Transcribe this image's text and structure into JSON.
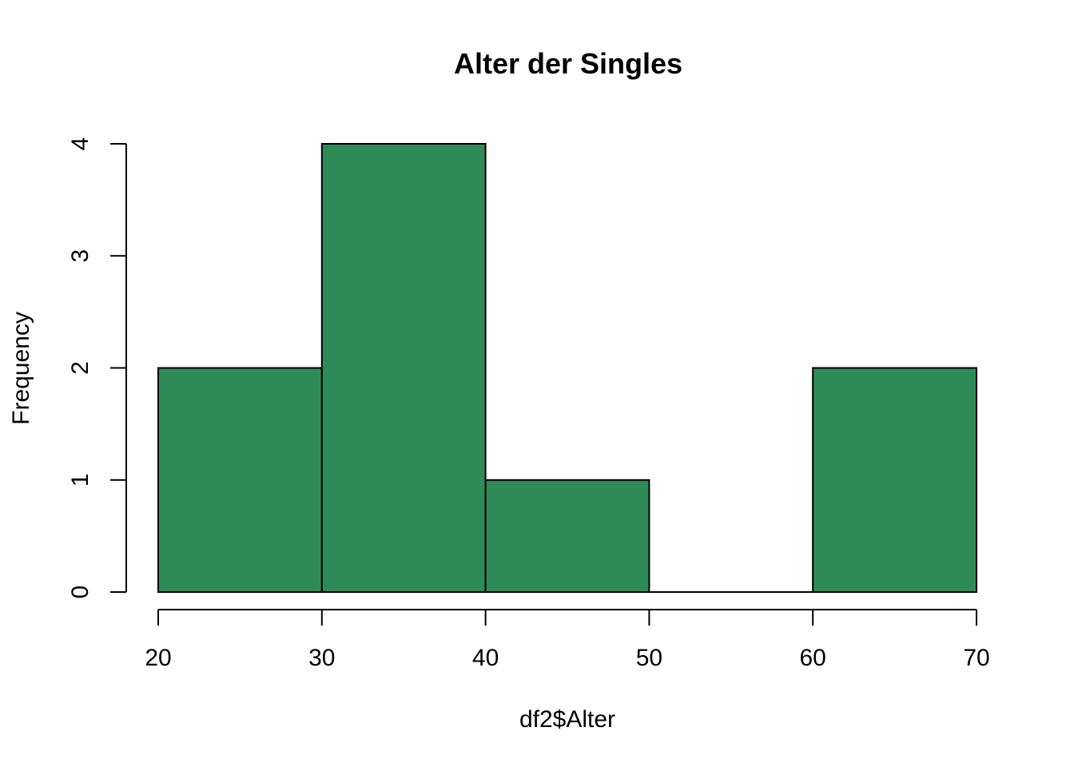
{
  "chart_data": {
    "type": "bar",
    "title": "Alter der Singles",
    "xlabel": "df2$Alter",
    "ylabel": "Frequency",
    "bins": [
      {
        "from": 20,
        "to": 30,
        "count": 2
      },
      {
        "from": 30,
        "to": 40,
        "count": 4
      },
      {
        "from": 40,
        "to": 50,
        "count": 1
      },
      {
        "from": 50,
        "to": 60,
        "count": 0
      },
      {
        "from": 60,
        "to": 70,
        "count": 2
      }
    ],
    "x_ticks": [
      20,
      30,
      40,
      50,
      60,
      70
    ],
    "y_ticks": [
      0,
      1,
      2,
      3,
      4
    ],
    "xlim": [
      20,
      70
    ],
    "ylim": [
      0,
      4
    ],
    "bar_color": "#2E8B57",
    "grid": false,
    "legend": "none"
  }
}
